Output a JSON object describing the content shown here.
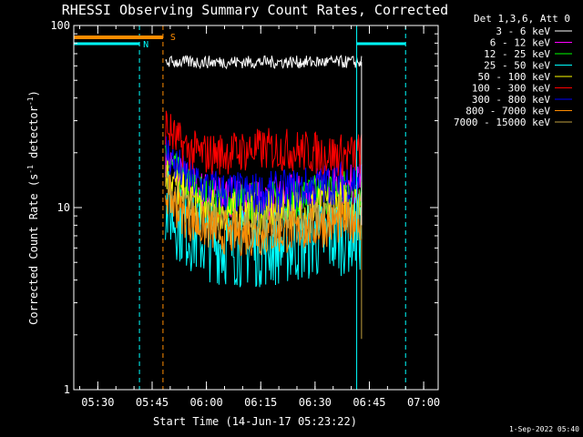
{
  "chart_data": {
    "type": "line",
    "title": "RHESSI Observing Summary Count Rates, Corrected",
    "xlabel": "Start Time (14-Jun-17 05:23:22)",
    "ylabel_main": "Corrected Count Rate (s",
    "ylabel_sup1": "-1",
    "ylabel_mid": " detector",
    "ylabel_sup2": "-1",
    "ylabel_end": ")",
    "yscale": "log",
    "ylim": [
      1,
      100
    ],
    "xlim": [
      "05:23:22",
      "07:04:00"
    ],
    "y_ticks": [
      {
        "label": "1",
        "value": 1
      },
      {
        "label": "10",
        "value": 10
      },
      {
        "label": "100",
        "value": 100
      }
    ],
    "x_ticks": [
      "05:30",
      "05:45",
      "06:00",
      "06:15",
      "06:30",
      "06:45",
      "07:00"
    ],
    "legend_header": "Det 1,3,6, Att 0",
    "legend_placement": "right, outside plot",
    "series": [
      {
        "name": "3 - 6 keV",
        "color": "#ffffff",
        "level": 63
      },
      {
        "name": "6 - 12 keV",
        "color": "#ff00ff",
        "level": 12.5
      },
      {
        "name": "12 - 25 keV",
        "color": "#00ff00",
        "level": 12
      },
      {
        "name": "25 - 50 keV",
        "color": "#00ffff",
        "level": 6.8
      },
      {
        "name": "50 - 100 keV",
        "color": "#ffff00",
        "level": 10.5
      },
      {
        "name": "100 - 300 keV",
        "color": "#ff0000",
        "level": 21
      },
      {
        "name": "300 - 800 keV",
        "color": "#0000ff",
        "level": 13.5
      },
      {
        "name": "800 - 7000 keV",
        "color": "#ff8c00",
        "level": 8
      },
      {
        "name": "7000 - 15000 keV",
        "color": "#c0a040",
        "level": 9
      }
    ],
    "data_window": {
      "start": "05:48:40",
      "end": "06:42:50"
    },
    "flags": [
      {
        "label": "N",
        "color": "#00ffff",
        "kind": "night"
      },
      {
        "label": "S",
        "color": "#ff8c00",
        "kind": "SAA"
      }
    ],
    "event_lines": [
      "05:41:30",
      "05:48:00",
      "06:41:30",
      "06:55:00"
    ],
    "timestamp": "1-Sep-2022 05:40"
  }
}
